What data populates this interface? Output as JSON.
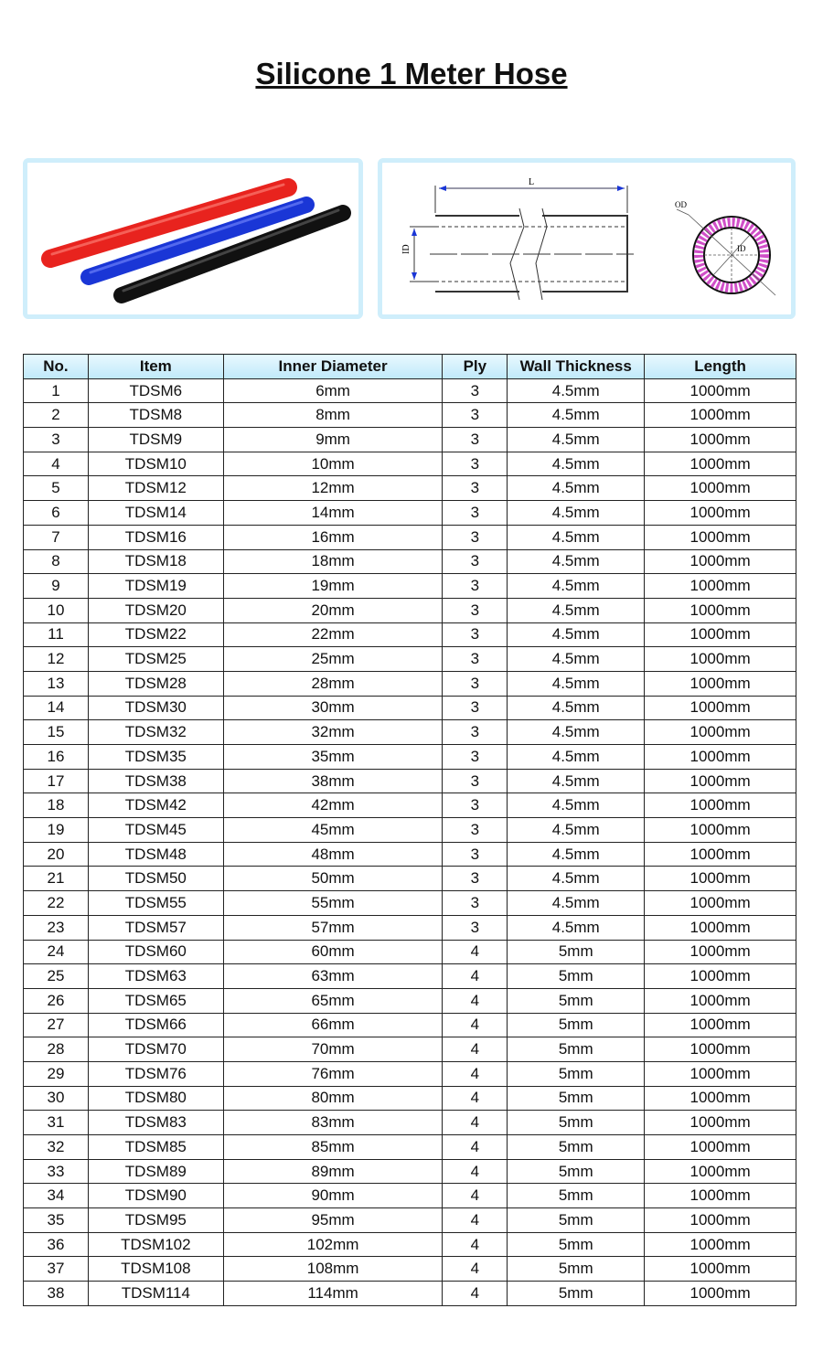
{
  "title": "Silicone 1 Meter Hose",
  "diagram": {
    "length_label": "L",
    "id_label": "ID",
    "od_label": "OD"
  },
  "colors": {
    "red_hose": "#e8231e",
    "blue_hose": "#1a36d6",
    "black_hose": "#111111",
    "panel_border": "#cfeefb",
    "header_bg": "#bfe9fa",
    "wall_pattern": "#d04fc8"
  },
  "table": {
    "headers": [
      "No.",
      "Item",
      "Inner Diameter",
      "Ply",
      "Wall Thickness",
      "Length"
    ],
    "rows": [
      [
        "1",
        "TDSM6",
        "6mm",
        "3",
        "4.5mm",
        "1000mm"
      ],
      [
        "2",
        "TDSM8",
        "8mm",
        "3",
        "4.5mm",
        "1000mm"
      ],
      [
        "3",
        "TDSM9",
        "9mm",
        "3",
        "4.5mm",
        "1000mm"
      ],
      [
        "4",
        "TDSM10",
        "10mm",
        "3",
        "4.5mm",
        "1000mm"
      ],
      [
        "5",
        "TDSM12",
        "12mm",
        "3",
        "4.5mm",
        "1000mm"
      ],
      [
        "6",
        "TDSM14",
        "14mm",
        "3",
        "4.5mm",
        "1000mm"
      ],
      [
        "7",
        "TDSM16",
        "16mm",
        "3",
        "4.5mm",
        "1000mm"
      ],
      [
        "8",
        "TDSM18",
        "18mm",
        "3",
        "4.5mm",
        "1000mm"
      ],
      [
        "9",
        "TDSM19",
        "19mm",
        "3",
        "4.5mm",
        "1000mm"
      ],
      [
        "10",
        "TDSM20",
        "20mm",
        "3",
        "4.5mm",
        "1000mm"
      ],
      [
        "11",
        "TDSM22",
        "22mm",
        "3",
        "4.5mm",
        "1000mm"
      ],
      [
        "12",
        "TDSM25",
        "25mm",
        "3",
        "4.5mm",
        "1000mm"
      ],
      [
        "13",
        "TDSM28",
        "28mm",
        "3",
        "4.5mm",
        "1000mm"
      ],
      [
        "14",
        "TDSM30",
        "30mm",
        "3",
        "4.5mm",
        "1000mm"
      ],
      [
        "15",
        "TDSM32",
        "32mm",
        "3",
        "4.5mm",
        "1000mm"
      ],
      [
        "16",
        "TDSM35",
        "35mm",
        "3",
        "4.5mm",
        "1000mm"
      ],
      [
        "17",
        "TDSM38",
        "38mm",
        "3",
        "4.5mm",
        "1000mm"
      ],
      [
        "18",
        "TDSM42",
        "42mm",
        "3",
        "4.5mm",
        "1000mm"
      ],
      [
        "19",
        "TDSM45",
        "45mm",
        "3",
        "4.5mm",
        "1000mm"
      ],
      [
        "20",
        "TDSM48",
        "48mm",
        "3",
        "4.5mm",
        "1000mm"
      ],
      [
        "21",
        "TDSM50",
        "50mm",
        "3",
        "4.5mm",
        "1000mm"
      ],
      [
        "22",
        "TDSM55",
        "55mm",
        "3",
        "4.5mm",
        "1000mm"
      ],
      [
        "23",
        "TDSM57",
        "57mm",
        "3",
        "4.5mm",
        "1000mm"
      ],
      [
        "24",
        "TDSM60",
        "60mm",
        "4",
        "5mm",
        "1000mm"
      ],
      [
        "25",
        "TDSM63",
        "63mm",
        "4",
        "5mm",
        "1000mm"
      ],
      [
        "26",
        "TDSM65",
        "65mm",
        "4",
        "5mm",
        "1000mm"
      ],
      [
        "27",
        "TDSM66",
        "66mm",
        "4",
        "5mm",
        "1000mm"
      ],
      [
        "28",
        "TDSM70",
        "70mm",
        "4",
        "5mm",
        "1000mm"
      ],
      [
        "29",
        "TDSM76",
        "76mm",
        "4",
        "5mm",
        "1000mm"
      ],
      [
        "30",
        "TDSM80",
        "80mm",
        "4",
        "5mm",
        "1000mm"
      ],
      [
        "31",
        "TDSM83",
        "83mm",
        "4",
        "5mm",
        "1000mm"
      ],
      [
        "32",
        "TDSM85",
        "85mm",
        "4",
        "5mm",
        "1000mm"
      ],
      [
        "33",
        "TDSM89",
        "89mm",
        "4",
        "5mm",
        "1000mm"
      ],
      [
        "34",
        "TDSM90",
        "90mm",
        "4",
        "5mm",
        "1000mm"
      ],
      [
        "35",
        "TDSM95",
        "95mm",
        "4",
        "5mm",
        "1000mm"
      ],
      [
        "36",
        "TDSM102",
        "102mm",
        "4",
        "5mm",
        "1000mm"
      ],
      [
        "37",
        "TDSM108",
        "108mm",
        "4",
        "5mm",
        "1000mm"
      ],
      [
        "38",
        "TDSM114",
        "114mm",
        "4",
        "5mm",
        "1000mm"
      ]
    ]
  }
}
